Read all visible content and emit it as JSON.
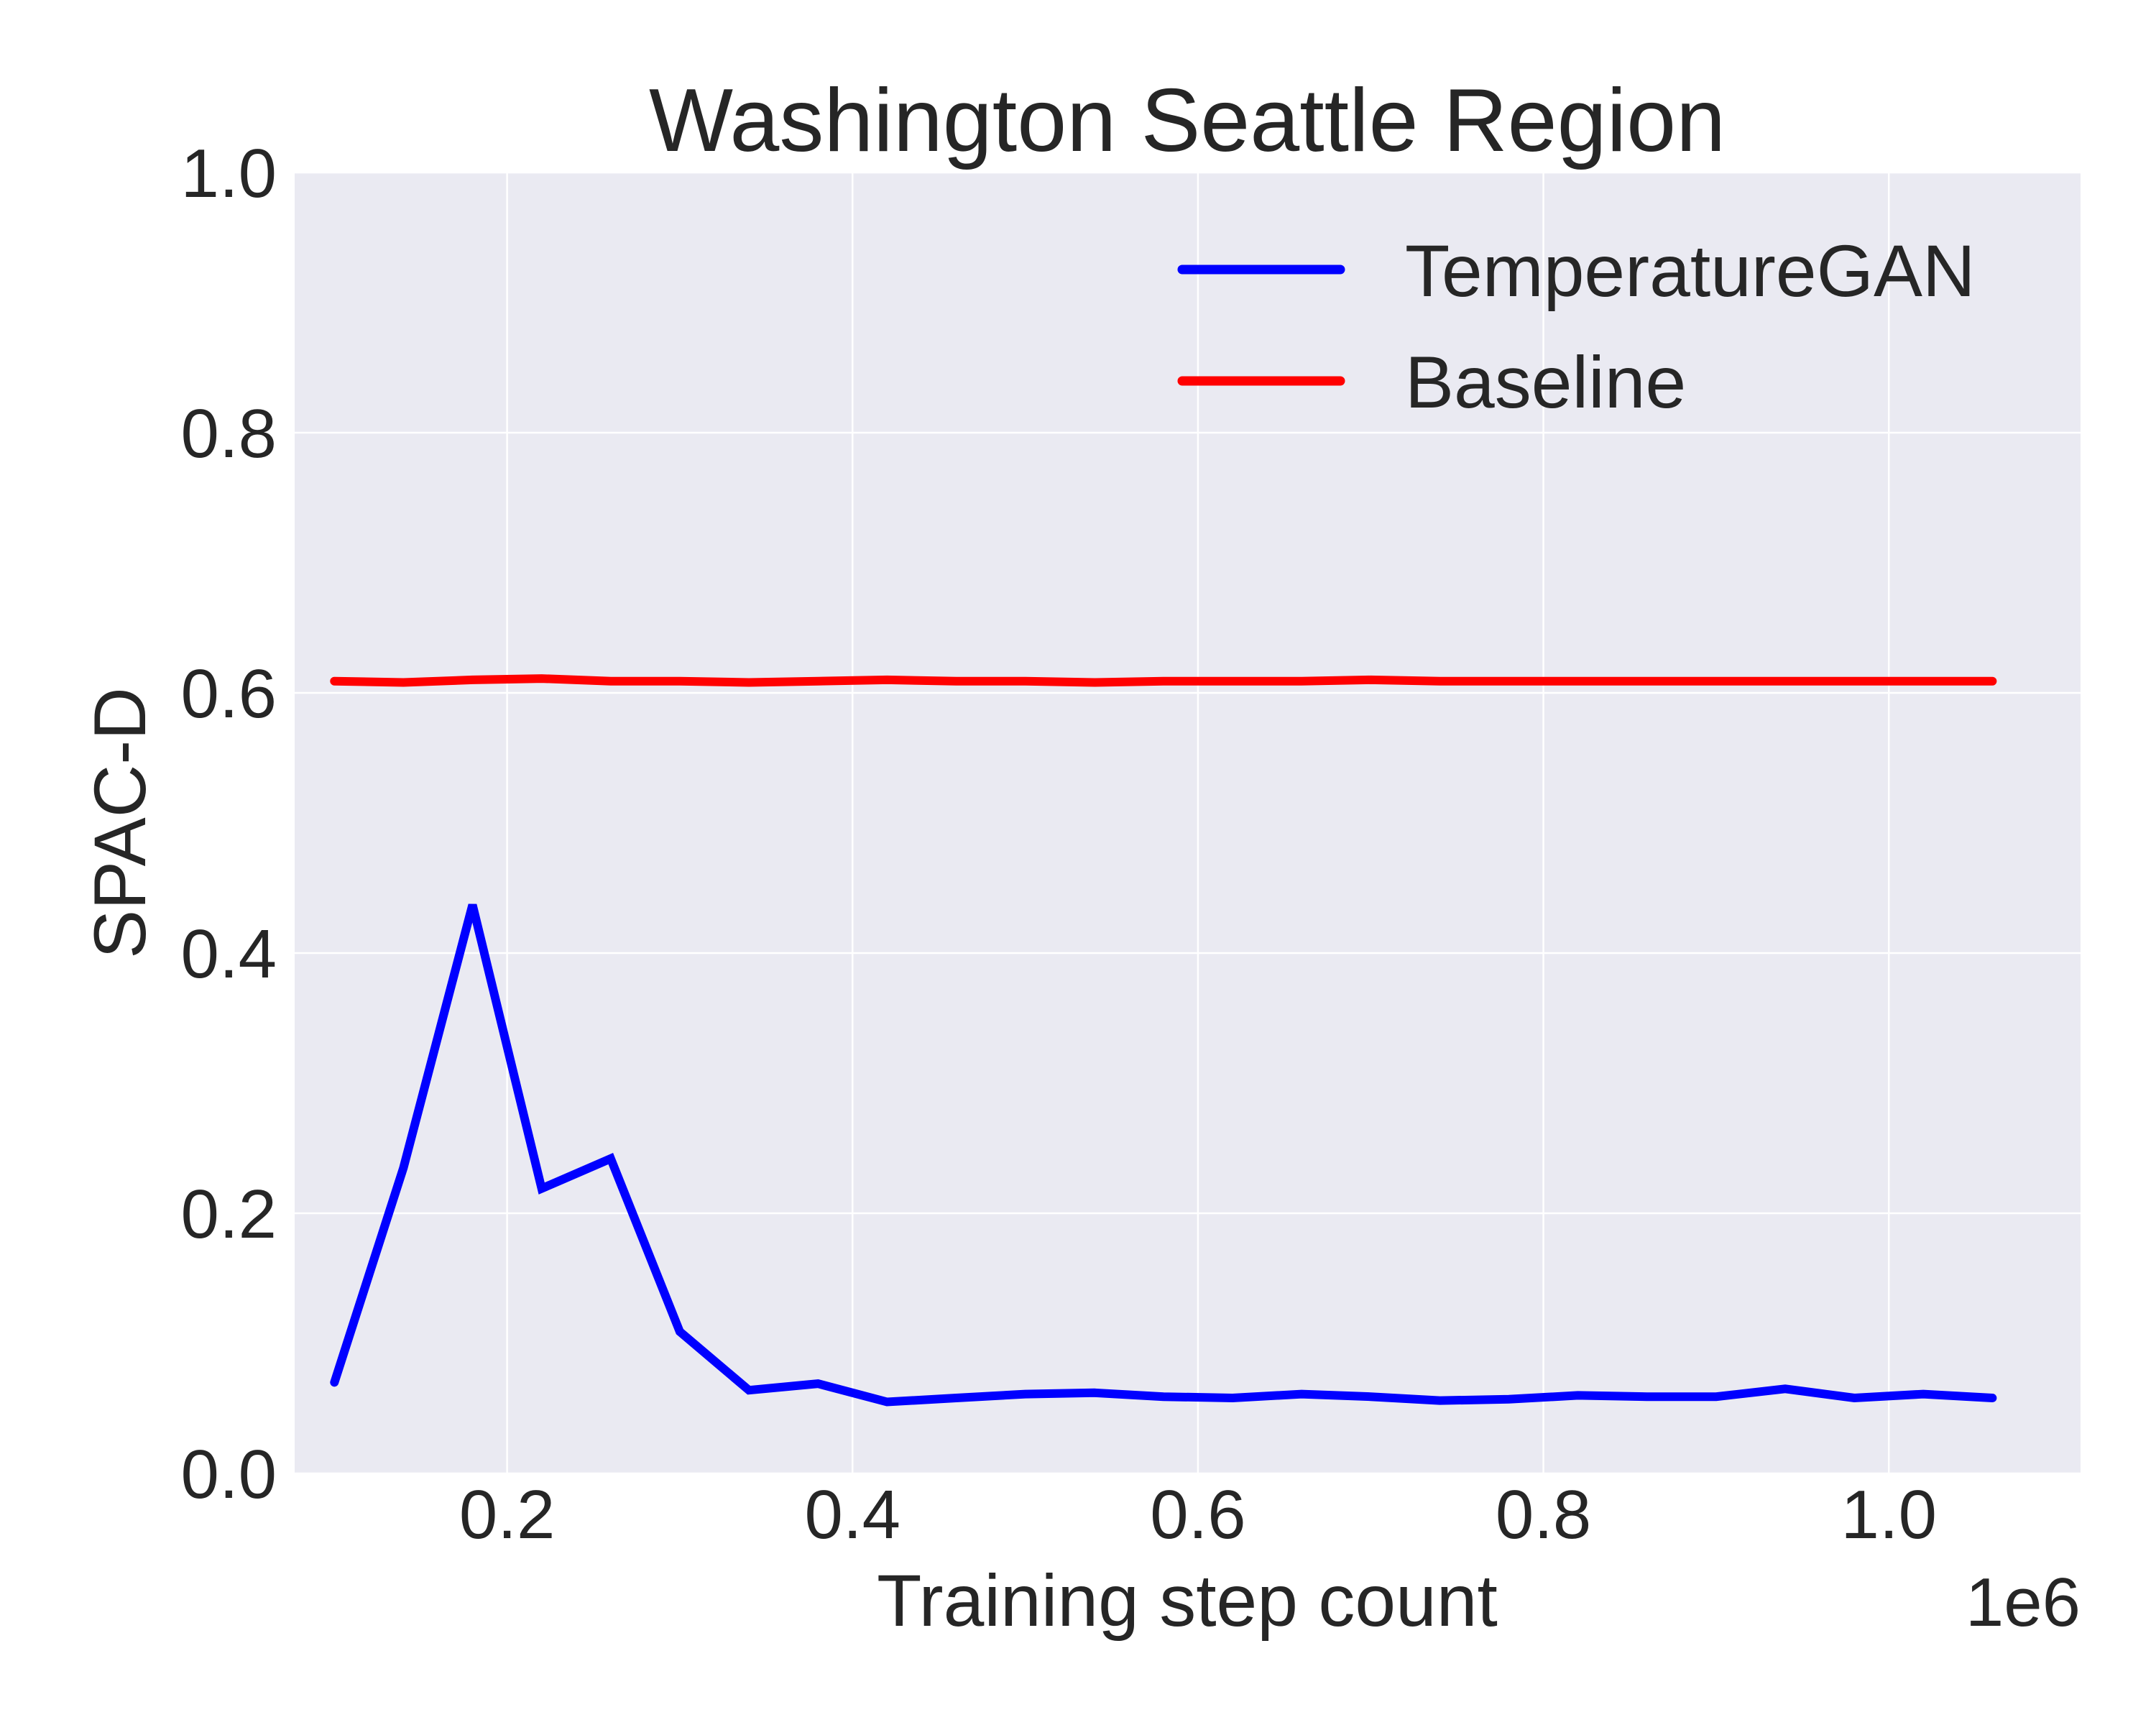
{
  "chart_data": {
    "type": "line",
    "title": "Washington Seattle Region",
    "xlabel": "Training step count",
    "ylabel": "SPAC-D",
    "x_offset_label": "1e6",
    "x_scale_factor": 1000000,
    "xlim": [
      0.077,
      1.111
    ],
    "ylim": [
      0.0,
      1.0
    ],
    "xticks": [
      0.2,
      0.4,
      0.6,
      0.8,
      1.0
    ],
    "xtick_labels": [
      "0.2",
      "0.4",
      "0.6",
      "0.8",
      "1.0"
    ],
    "yticks": [
      0.0,
      0.2,
      0.4,
      0.6,
      0.8,
      1.0
    ],
    "ytick_labels": [
      "0.0",
      "0.2",
      "0.4",
      "0.6",
      "0.8",
      "1.0"
    ],
    "grid": true,
    "legend_position": "top-right",
    "x": [
      0.1,
      0.14,
      0.18,
      0.22,
      0.26,
      0.3,
      0.34,
      0.38,
      0.42,
      0.46,
      0.5,
      0.54,
      0.58,
      0.62,
      0.66,
      0.7,
      0.74,
      0.78,
      0.82,
      0.86,
      0.9,
      0.94,
      0.98,
      1.02,
      1.06
    ],
    "series": [
      {
        "name": "TemperatureGAN",
        "color": "#0000ff",
        "values": [
          0.07,
          0.235,
          0.437,
          0.219,
          0.242,
          0.109,
          0.064,
          0.069,
          0.055,
          0.058,
          0.061,
          0.062,
          0.059,
          0.058,
          0.061,
          0.059,
          0.056,
          0.057,
          0.06,
          0.059,
          0.059,
          0.065,
          0.058,
          0.061,
          0.058
        ]
      },
      {
        "name": "Baseline",
        "color": "#ff0000",
        "values": [
          0.609,
          0.608,
          0.61,
          0.611,
          0.609,
          0.609,
          0.608,
          0.609,
          0.61,
          0.609,
          0.609,
          0.608,
          0.609,
          0.609,
          0.609,
          0.61,
          0.609,
          0.609,
          0.609,
          0.609,
          0.609,
          0.609,
          0.609,
          0.609,
          0.609
        ]
      }
    ]
  },
  "colors": {
    "plot_background": "#eaeaf2",
    "grid": "#ffffff",
    "text": "#262626"
  }
}
